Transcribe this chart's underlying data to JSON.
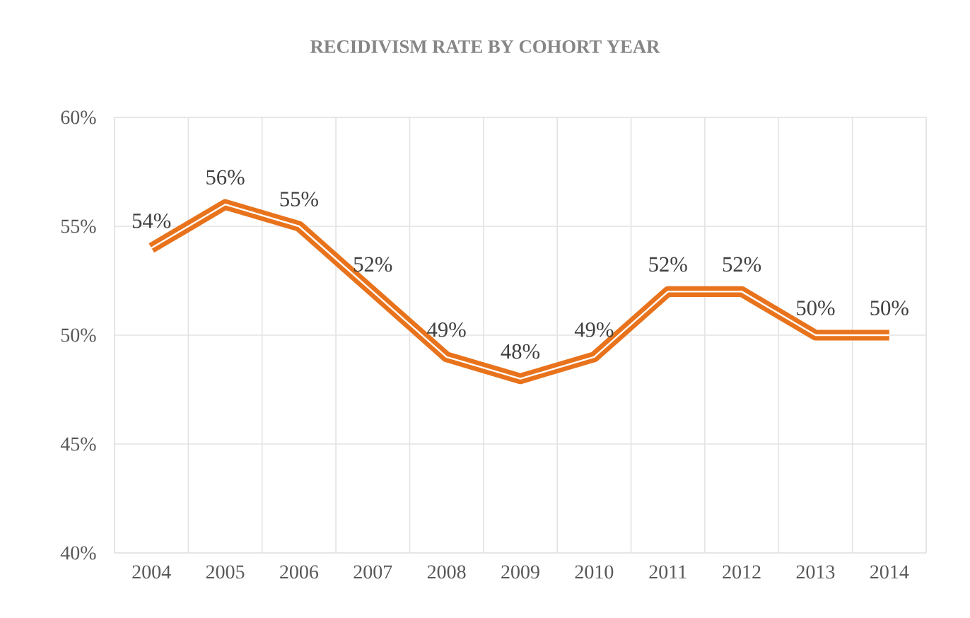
{
  "chart_data": {
    "type": "line",
    "title": "RECIDIVISM RATE BY COHORT YEAR",
    "categories": [
      "2004",
      "2005",
      "2006",
      "2007",
      "2008",
      "2009",
      "2010",
      "2011",
      "2012",
      "2013",
      "2014"
    ],
    "values": [
      54,
      56,
      55,
      52,
      49,
      48,
      49,
      52,
      52,
      50,
      50
    ],
    "value_labels": [
      "54%",
      "56%",
      "55%",
      "52%",
      "49%",
      "48%",
      "49%",
      "52%",
      "52%",
      "50%",
      "50%"
    ],
    "color": "#e8731c",
    "line_style": "solid",
    "grid": true,
    "ylim": [
      40,
      60
    ],
    "yticks": [
      {
        "value": 40,
        "label": "40%"
      },
      {
        "value": 45,
        "label": "45%"
      },
      {
        "value": 50,
        "label": "50%"
      },
      {
        "value": 55,
        "label": "55%"
      },
      {
        "value": 60,
        "label": "60%"
      }
    ]
  }
}
